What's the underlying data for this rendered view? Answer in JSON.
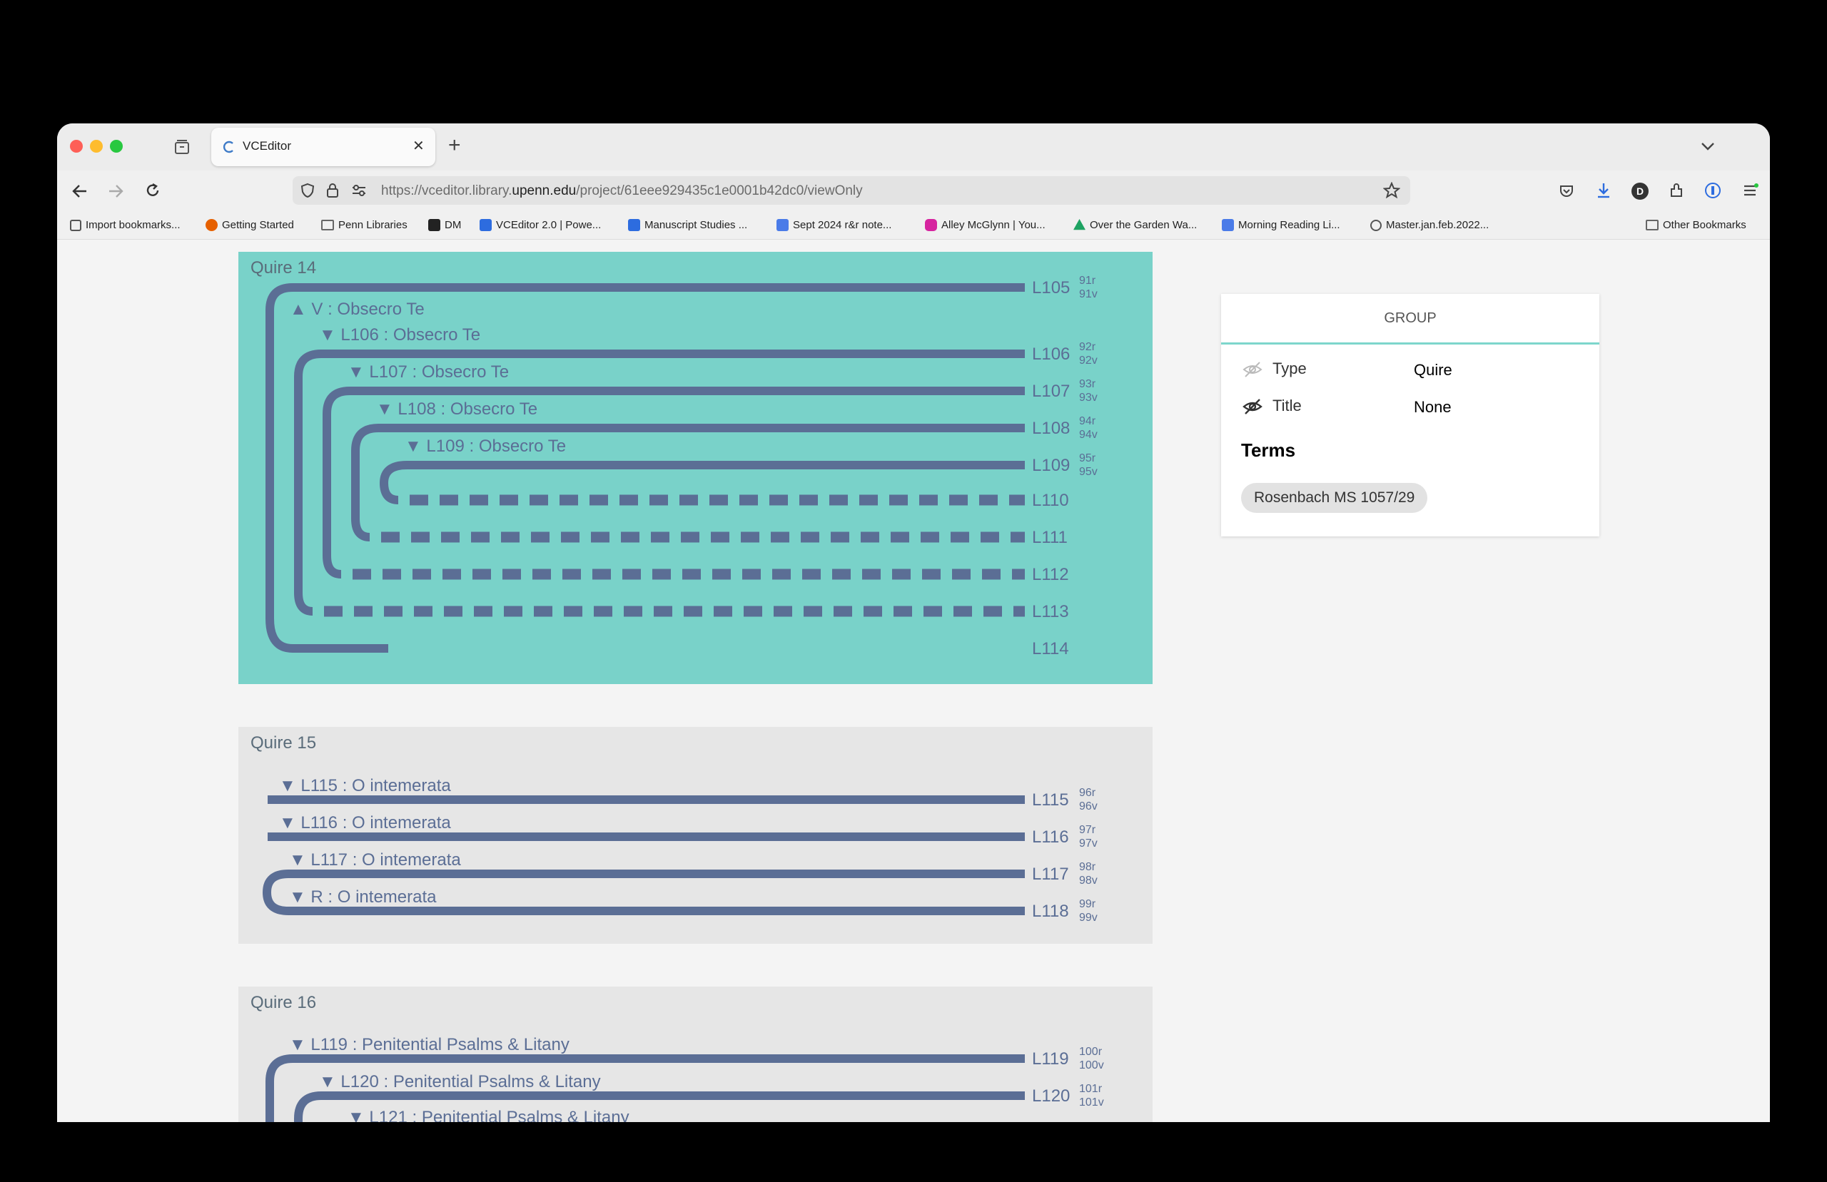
{
  "browser": {
    "tab_title": "VCEditor",
    "url_prefix": "https://vceditor.library.",
    "url_domain": "upenn.edu",
    "url_path": "/project/61eee929435c1e0001b42dc0/viewOnly",
    "new_tab": "+",
    "close_tab": "✕",
    "profile_initial": "D",
    "bookmarks": [
      {
        "label": "Import bookmarks...",
        "color": "#555555"
      },
      {
        "label": "Getting Started",
        "color": "#e66000"
      },
      {
        "label": "Penn Libraries",
        "color": "#777777"
      },
      {
        "label": "DM",
        "color": "#222222"
      },
      {
        "label": "VCEditor 2.0 | Powe...",
        "color": "#2d6cdf"
      },
      {
        "label": "Manuscript Studies ...",
        "color": "#2d6cdf"
      },
      {
        "label": "Sept 2024 r&r note...",
        "color": "#4a7be8"
      },
      {
        "label": "Alley McGlynn | You...",
        "color": "#d6249f"
      },
      {
        "label": "Over the Garden Wa...",
        "color": "#1ea362"
      },
      {
        "label": "Morning Reading Li...",
        "color": "#4a7be8"
      },
      {
        "label": "Master.jan.feb.2022...",
        "color": "#555555"
      }
    ],
    "other_bookmarks": "Other Bookmarks"
  },
  "quires": [
    {
      "title": "Quire 14",
      "groups": [
        "▲ V : Obsecro Te",
        "▼ L106 : Obsecro Te",
        "▼ L107 : Obsecro Te",
        "▼ L108 : Obsecro Te",
        "▼ L109 : Obsecro Te"
      ],
      "leaves": [
        {
          "label": "L105",
          "recto": "91r",
          "verso": "91v"
        },
        {
          "label": "L106",
          "recto": "92r",
          "verso": "92v"
        },
        {
          "label": "L107",
          "recto": "93r",
          "verso": "93v"
        },
        {
          "label": "L108",
          "recto": "94r",
          "verso": "94v"
        },
        {
          "label": "L109",
          "recto": "95r",
          "verso": "95v"
        },
        {
          "label": "L110"
        },
        {
          "label": "L111"
        },
        {
          "label": "L112"
        },
        {
          "label": "L113"
        },
        {
          "label": "L114"
        }
      ]
    },
    {
      "title": "Quire 15",
      "groups": [
        "▼ L115 : O intemerata",
        "▼ L116 : O intemerata",
        "▼ L117 : O intemerata",
        "▼ R : O intemerata"
      ],
      "leaves": [
        {
          "label": "L115",
          "recto": "96r",
          "verso": "96v"
        },
        {
          "label": "L116",
          "recto": "97r",
          "verso": "97v"
        },
        {
          "label": "L117",
          "recto": "98r",
          "verso": "98v"
        },
        {
          "label": "L118",
          "recto": "99r",
          "verso": "99v"
        }
      ]
    },
    {
      "title": "Quire 16",
      "groups": [
        "▼ L119 : Penitential Psalms & Litany",
        "▼ L120 : Penitential Psalms & Litany",
        "▼ L121 : Penitential Psalms & Litany"
      ],
      "leaves": [
        {
          "label": "L119",
          "recto": "100r",
          "verso": "100v"
        },
        {
          "label": "L120",
          "recto": "101r",
          "verso": "101v"
        }
      ]
    }
  ],
  "panel": {
    "header": "GROUP",
    "type_label": "Type",
    "type_value": "Quire",
    "title_label": "Title",
    "title_value": "None",
    "terms_heading": "Terms",
    "term": "Rosenbach MS 1057/29"
  },
  "colors": {
    "selected_bg": "#79d2c9",
    "quire_bg": "#e6e6e6",
    "leaf": "#5b6e95",
    "label": "#5a6c7a"
  }
}
